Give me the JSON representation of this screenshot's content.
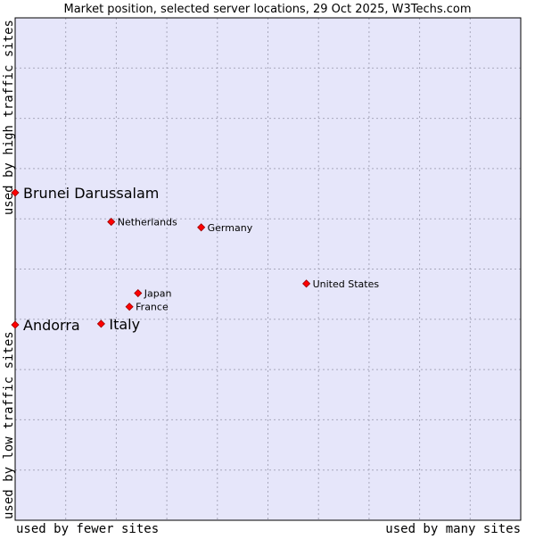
{
  "chart_data": {
    "type": "scatter",
    "title": "Market position, selected server locations, 29 Oct 2025, W3Techs.com",
    "xlabel_left": "used by fewer sites",
    "xlabel_right": "used by many sites",
    "ylabel_bottom": "used by low traffic sites",
    "ylabel_top": "used by high traffic sites",
    "xlim": [
      0,
      100
    ],
    "ylim": [
      0,
      100
    ],
    "grid": true,
    "points": [
      {
        "label": "Brunei Darussalam",
        "x": 0.0,
        "y": 65.2,
        "emphasis": true
      },
      {
        "label": "Netherlands",
        "x": 19.0,
        "y": 59.4,
        "emphasis": false
      },
      {
        "label": "Germany",
        "x": 36.8,
        "y": 58.3,
        "emphasis": false
      },
      {
        "label": "United States",
        "x": 57.6,
        "y": 47.1,
        "emphasis": false
      },
      {
        "label": "Japan",
        "x": 24.3,
        "y": 45.2,
        "emphasis": false
      },
      {
        "label": "France",
        "x": 22.6,
        "y": 42.5,
        "emphasis": false
      },
      {
        "label": "Andorra",
        "x": 0.0,
        "y": 38.9,
        "emphasis": true
      },
      {
        "label": "Italy",
        "x": 17.0,
        "y": 39.1,
        "emphasis": true
      }
    ]
  },
  "colors": {
    "plot_background": "#e6e6fa",
    "grid": "#a8a8bc",
    "border": "#000000",
    "marker": "#ff0000",
    "marker_edge": "#990000"
  }
}
